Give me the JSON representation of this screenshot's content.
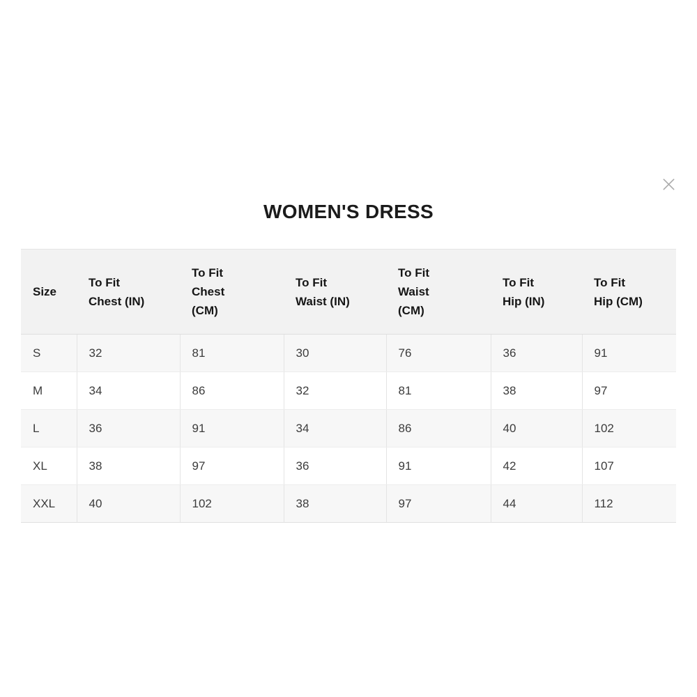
{
  "modal": {
    "title": "WOMEN'S DRESS"
  },
  "size_chart": {
    "columns": [
      "Size",
      "To Fit\nChest (IN)",
      "To Fit\nChest\n(CM)",
      "To Fit\nWaist (IN)",
      "To Fit\nWaist\n(CM)",
      "To Fit\nHip (IN)",
      "To Fit\nHip (CM)"
    ],
    "rows": [
      [
        "S",
        "32",
        "81",
        "30",
        "76",
        "36",
        "91"
      ],
      [
        "M",
        "34",
        "86",
        "32",
        "81",
        "38",
        "97"
      ],
      [
        "L",
        "36",
        "91",
        "34",
        "86",
        "40",
        "102"
      ],
      [
        "XL",
        "38",
        "97",
        "36",
        "91",
        "42",
        "107"
      ],
      [
        "XXL",
        "40",
        "102",
        "38",
        "97",
        "44",
        "112"
      ]
    ]
  },
  "colors": {
    "header_bg": "#f2f2f2",
    "stripe_bg": "#f7f7f7",
    "row_bg": "#ffffff",
    "border": "#e4e4e4",
    "header_text": "#161616",
    "cell_text": "#3c3c3c",
    "title_text": "#1b1b1b",
    "close_icon": "#a9a9a9"
  }
}
